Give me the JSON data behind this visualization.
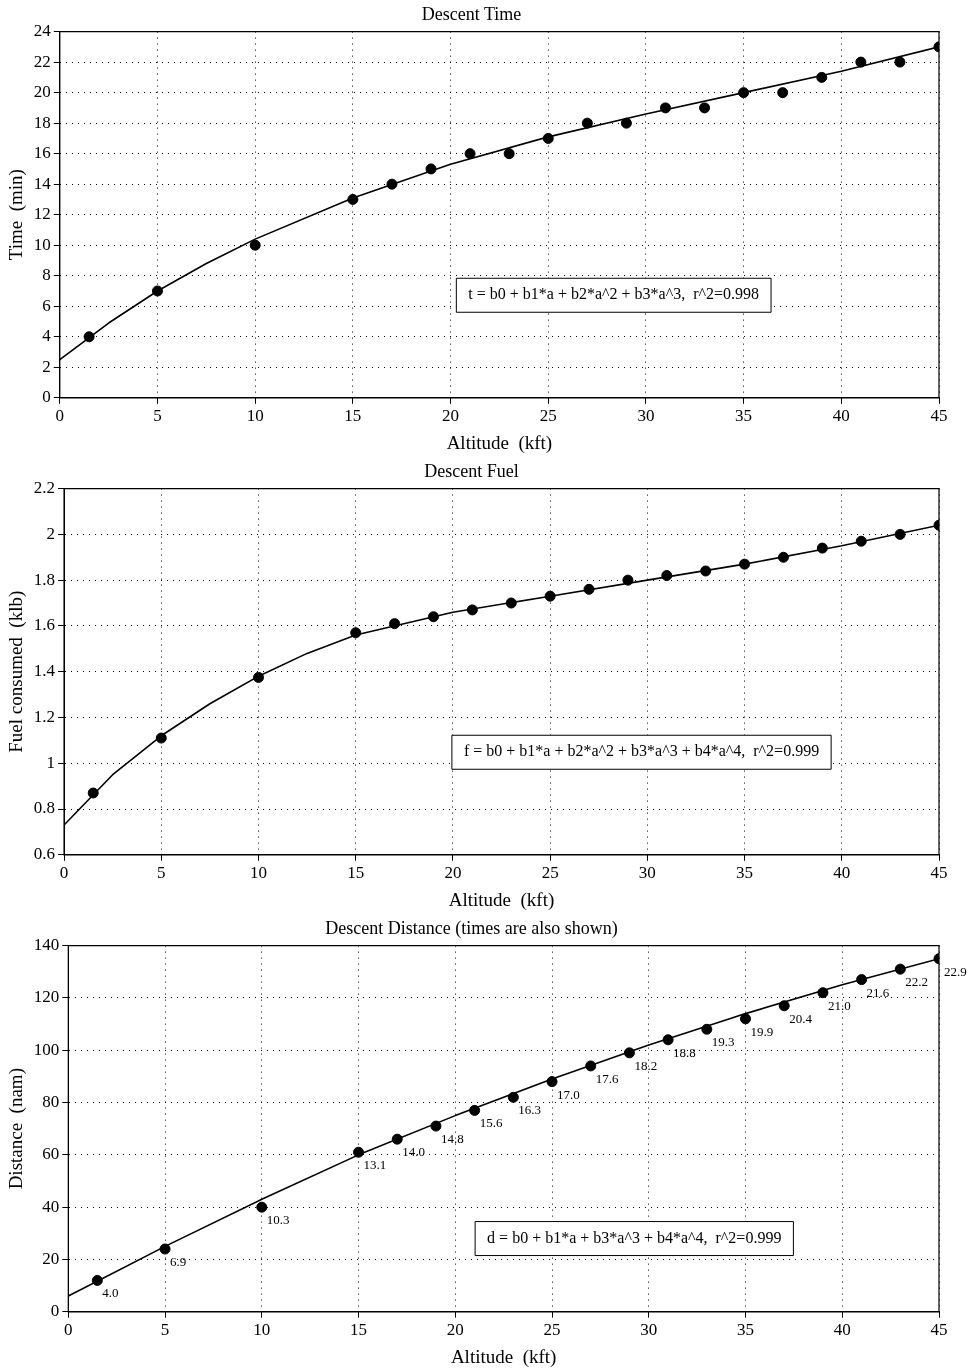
{
  "chart_data": [
    {
      "type": "scatter",
      "title": "Descent Time",
      "xlabel": "Altitude  (kft)",
      "ylabel": "Time  (min)",
      "grid": true,
      "xlim": [
        0,
        45
      ],
      "xticks": [
        0,
        5,
        10,
        15,
        20,
        25,
        30,
        35,
        40,
        45
      ],
      "ylim": [
        0,
        24
      ],
      "yticks": [
        0,
        2,
        4,
        6,
        8,
        10,
        12,
        14,
        16,
        18,
        20,
        22,
        24
      ],
      "annotations": [
        "t = b0 + b1*a + b2*a^2 + b3*a^3,  r^2=0.998"
      ],
      "series": [
        {
          "color": "#000000",
          "marker": "circle",
          "x": [
            1.5,
            5,
            10,
            15,
            17,
            19,
            21,
            23,
            25,
            27,
            29,
            31,
            33,
            35,
            37,
            39,
            41,
            43,
            45
          ],
          "values": [
            4,
            7,
            10,
            13,
            14,
            15,
            16,
            16,
            17,
            18,
            18,
            19,
            19,
            20,
            20,
            21,
            22,
            22,
            23
          ]
        },
        {
          "type": "line",
          "marker": "none",
          "line_style": "solid",
          "color": "#000000",
          "x": [
            0,
            2.5,
            5,
            7.5,
            10,
            15,
            20,
            25,
            30,
            35,
            40,
            45
          ],
          "values": [
            2.5,
            4.9,
            7,
            8.8,
            10.4,
            13.1,
            15.3,
            17.1,
            18.6,
            20,
            21.4,
            23
          ]
        }
      ]
    },
    {
      "type": "scatter",
      "title": "Descent Fuel",
      "xlabel": "Altitude  (kft)",
      "ylabel": "Fuel consumed  (klb)",
      "grid": true,
      "xlim": [
        0,
        45
      ],
      "xticks": [
        0,
        5,
        10,
        15,
        20,
        25,
        30,
        35,
        40,
        45
      ],
      "ylim": [
        0.6,
        2.2
      ],
      "yticks": [
        0.6,
        0.8,
        1,
        1.2,
        1.4,
        1.6,
        1.8,
        2,
        2.2
      ],
      "annotations": [
        "f = b0 + b1*a + b2*a^2 + b3*a^3 + b4*a^4,  r^2=0.999"
      ],
      "series": [
        {
          "color": "#000000",
          "marker": "circle",
          "x": [
            1.5,
            5,
            10,
            15,
            17,
            19,
            21,
            23,
            25,
            27,
            29,
            31,
            33,
            35,
            37,
            39,
            41,
            43,
            45
          ],
          "values": [
            0.87,
            1.11,
            1.375,
            1.57,
            1.61,
            1.64,
            1.67,
            1.7,
            1.73,
            1.76,
            1.8,
            1.82,
            1.84,
            1.87,
            1.9,
            1.94,
            1.97,
            2,
            2.04
          ]
        },
        {
          "type": "line",
          "marker": "none",
          "line_style": "solid",
          "color": "#000000",
          "x": [
            0,
            2.5,
            5,
            7.5,
            10,
            12.5,
            15,
            20,
            25,
            30,
            35,
            40,
            45
          ],
          "values": [
            0.73,
            0.95,
            1.12,
            1.26,
            1.38,
            1.48,
            1.56,
            1.66,
            1.73,
            1.8,
            1.87,
            1.95,
            2.04
          ]
        }
      ]
    },
    {
      "type": "scatter",
      "title": "Descent Distance (times are also shown)",
      "xlabel": "Altitude  (kft)",
      "ylabel": "Distance  (nam)",
      "grid": true,
      "xlim": [
        0,
        45
      ],
      "xticks": [
        0,
        5,
        10,
        15,
        20,
        25,
        30,
        35,
        40,
        45
      ],
      "ylim": [
        0,
        140
      ],
      "yticks": [
        0,
        20,
        40,
        60,
        80,
        100,
        120,
        140
      ],
      "annotations": [
        "d = b0 + b1*a + b3*a^3 + b4*a^4,  r^2=0.999",
        {
          "text": "4.0",
          "x": 1.5,
          "y": 12
        },
        {
          "text": "6.9",
          "x": 5,
          "y": 24
        },
        {
          "text": "10.3",
          "x": 10,
          "y": 40
        },
        {
          "text": "13.1",
          "x": 15,
          "y": 61
        },
        {
          "text": "14.0",
          "x": 17,
          "y": 66
        },
        {
          "text": "14.8",
          "x": 19,
          "y": 71
        },
        {
          "text": "15.6",
          "x": 21,
          "y": 77
        },
        {
          "text": "16.3",
          "x": 23,
          "y": 82
        },
        {
          "text": "17.0",
          "x": 25,
          "y": 88
        },
        {
          "text": "17.6",
          "x": 27,
          "y": 94
        },
        {
          "text": "18.2",
          "x": 29,
          "y": 99
        },
        {
          "text": "18.8",
          "x": 31,
          "y": 104
        },
        {
          "text": "19.3",
          "x": 33,
          "y": 108
        },
        {
          "text": "19.9",
          "x": 35,
          "y": 112
        },
        {
          "text": "20.4",
          "x": 37,
          "y": 117
        },
        {
          "text": "21.0",
          "x": 39,
          "y": 122
        },
        {
          "text": "21.6",
          "x": 41,
          "y": 127
        },
        {
          "text": "22.2",
          "x": 43,
          "y": 131
        },
        {
          "text": "22.9",
          "x": 45,
          "y": 135
        }
      ],
      "series": [
        {
          "color": "#000000",
          "marker": "circle",
          "x": [
            1.5,
            5,
            10,
            15,
            17,
            19,
            21,
            23,
            25,
            27,
            29,
            31,
            33,
            35,
            37,
            39,
            41,
            43,
            45
          ],
          "values": [
            12,
            24,
            40,
            61,
            66,
            71,
            77,
            82,
            88,
            94,
            99,
            104,
            108,
            112,
            117,
            122,
            127,
            131,
            135
          ]
        },
        {
          "type": "line",
          "marker": "none",
          "line_style": "solid",
          "color": "#000000",
          "x": [
            0,
            5,
            10,
            15,
            20,
            25,
            30,
            35,
            40,
            45
          ],
          "values": [
            6,
            25,
            43,
            60,
            75,
            89,
            102,
            114,
            125,
            135
          ]
        }
      ]
    }
  ]
}
